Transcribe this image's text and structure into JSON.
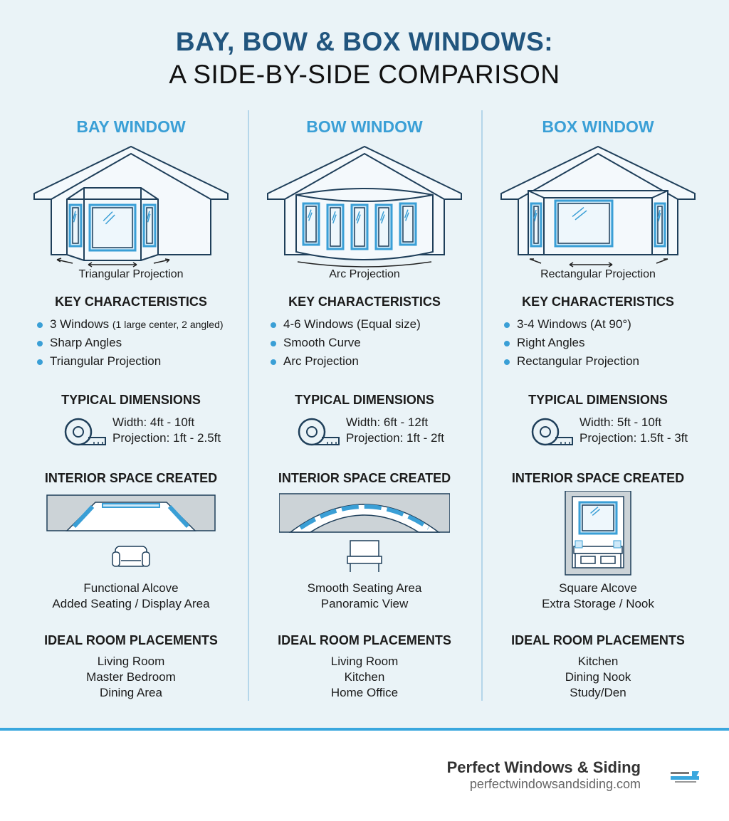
{
  "title": {
    "line1": "BAY, BOW & BOX WINDOWS:",
    "line2": "A SIDE-BY-SIDE COMPARISON"
  },
  "colors": {
    "title": "#21557e",
    "accent": "#3a9fd6",
    "background": "#eaf3f7",
    "line": "#1f3f5a"
  },
  "columns": [
    {
      "heading": "BAY WINDOW",
      "projection": "Triangular Projection",
      "key_heading": "KEY CHARACTERISTICS",
      "bullets": [
        {
          "text": "3 Windows",
          "note": "(1 large center, 2 angled)"
        },
        {
          "text": "Sharp Angles"
        },
        {
          "text": "Triangular Projection"
        }
      ],
      "dim_heading": "TYPICAL DIMENSIONS",
      "width": "Width: 4ft - 10ft",
      "projection_dim": "Projection: 1ft - 2.5ft",
      "interior_heading": "INTERIOR SPACE CREATED",
      "interior": [
        "Functional Alcove",
        "Added Seating / Display Area"
      ],
      "rooms_heading": "IDEAL ROOM PLACEMENTS",
      "rooms": [
        "Living Room",
        "Master Bedroom",
        "Dining Area"
      ]
    },
    {
      "heading": "BOW WINDOW",
      "projection": "Arc Projection",
      "key_heading": "KEY CHARACTERISTICS",
      "bullets": [
        {
          "text": "4-6 Windows (Equal size)"
        },
        {
          "text": "Smooth Curve"
        },
        {
          "text": "Arc Projection"
        }
      ],
      "dim_heading": "TYPICAL DIMENSIONS",
      "width": "Width: 6ft - 12ft",
      "projection_dim": "Projection: 1ft - 2ft",
      "interior_heading": "INTERIOR SPACE CREATED",
      "interior": [
        "Smooth Seating Area",
        "Panoramic View"
      ],
      "rooms_heading": "IDEAL ROOM PLACEMENTS",
      "rooms": [
        "Living Room",
        "Kitchen",
        "Home Office"
      ]
    },
    {
      "heading": "BOX WINDOW",
      "projection": "Rectangular Projection",
      "key_heading": "KEY CHARACTERISTICS",
      "bullets": [
        {
          "text": "3-4 Windows (At 90°)"
        },
        {
          "text": "Right Angles"
        },
        {
          "text": "Rectangular Projection"
        }
      ],
      "dim_heading": "TYPICAL DIMENSIONS",
      "width": "Width: 5ft - 10ft",
      "projection_dim": "Projection: 1.5ft - 3ft",
      "interior_heading": "INTERIOR SPACE CREATED",
      "interior": [
        "Square Alcove",
        "Extra Storage / Nook"
      ],
      "rooms_heading": "IDEAL ROOM PLACEMENTS",
      "rooms": [
        "Kitchen",
        "Dining Nook",
        "Study/Den"
      ]
    }
  ],
  "footer": {
    "brand": "Perfect Windows & Siding",
    "url": "perfectwindowsandsiding.com",
    "logo_text": "PERFECT WINDOWS & SIDING"
  }
}
